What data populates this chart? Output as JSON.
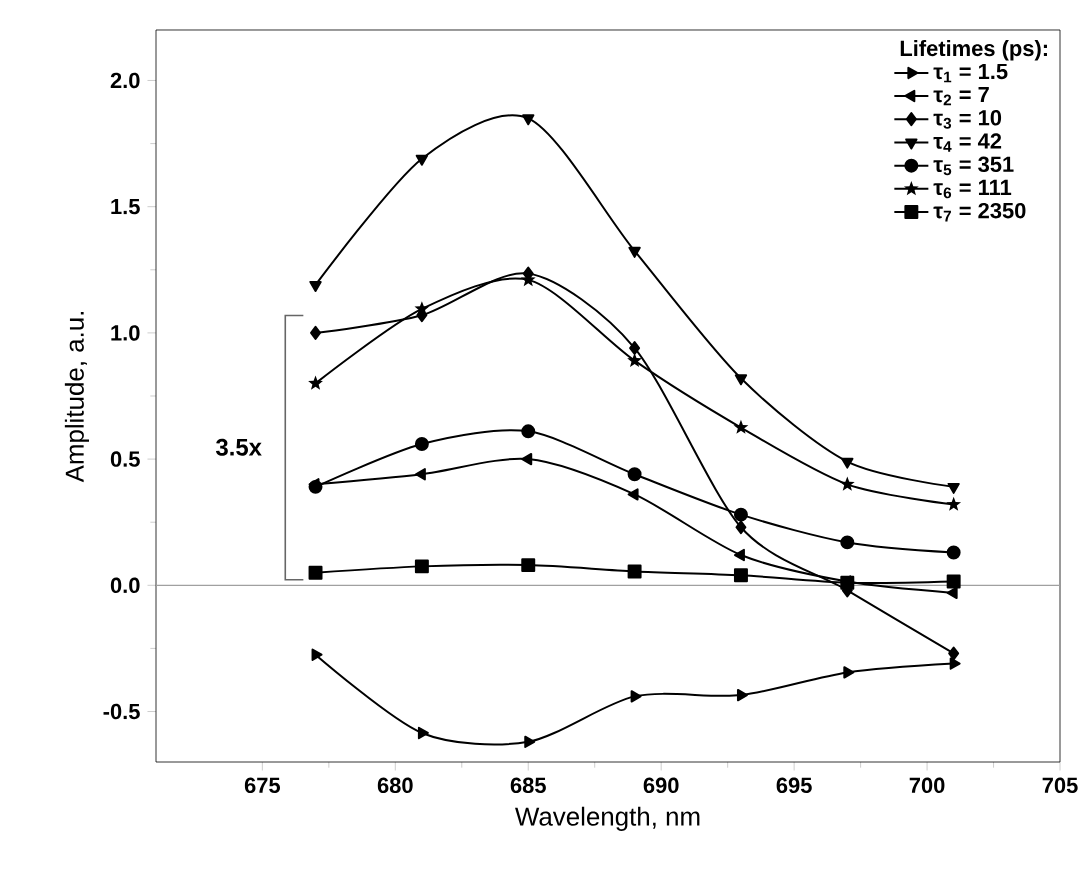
{
  "chart_data": {
    "type": "line",
    "xlabel": "Wavelength, nm",
    "ylabel": "Amplitude, a.u.",
    "legend_title": "Lifetimes (ps):",
    "legend": "top right",
    "x": [
      677,
      681,
      685,
      689,
      693,
      697,
      701
    ],
    "xlim": [
      671,
      705
    ],
    "xticks": [
      675,
      680,
      685,
      690,
      695,
      700,
      705
    ],
    "ylim": [
      -0.7,
      2.2
    ],
    "yticks": [
      -0.5,
      {
        "value": 0,
        "label": "0.0"
      },
      0.5,
      {
        "value": 1,
        "label": "1.0"
      },
      1.5,
      {
        "value": 2,
        "label": "2.0"
      }
    ],
    "line_style": "solid",
    "series": [
      {
        "name": "τ$_{1}$ = 1.5",
        "color": "#000000",
        "marker": "triangle-right",
        "values": [
          -0.275,
          -0.585,
          -0.62,
          -0.44,
          -0.435,
          -0.345,
          -0.31
        ]
      },
      {
        "name": "τ$_{2}$ = 7",
        "color": "#000000",
        "marker": "triangle-left",
        "values": [
          0.4,
          0.44,
          0.5,
          0.36,
          0.12,
          0.015,
          -0.03
        ]
      },
      {
        "name": "τ$_{3}$ = 10",
        "color": "#000000",
        "marker": "diamond",
        "values": [
          1.0,
          1.07,
          1.235,
          0.94,
          0.23,
          -0.02,
          -0.27
        ]
      },
      {
        "name": "τ$_{4}$ = 42",
        "color": "#000000",
        "marker": "triangle-down",
        "values": [
          1.19,
          1.69,
          1.85,
          1.325,
          0.82,
          0.49,
          0.39
        ]
      },
      {
        "name": "τ$_{5}$ = 351",
        "color": "#000000",
        "marker": "circle",
        "values": [
          0.39,
          0.56,
          0.61,
          0.44,
          0.28,
          0.17,
          0.13
        ]
      },
      {
        "name": "τ$_{6}$ = 111",
        "color": "#000000",
        "marker": "star",
        "values": [
          0.8,
          1.095,
          1.21,
          0.89,
          0.625,
          0.4,
          0.32
        ]
      },
      {
        "name": "τ$_{7}$ = 2350",
        "color": "#000000",
        "marker": "square",
        "values": [
          0.05,
          0.075,
          0.08,
          0.055,
          0.04,
          0.01,
          0.015
        ]
      }
    ],
    "ref_lines": [
      {
        "axis": "y",
        "value": 0,
        "color": "#a0a0a0"
      }
    ],
    "annotations": [
      "3.5x"
    ]
  }
}
